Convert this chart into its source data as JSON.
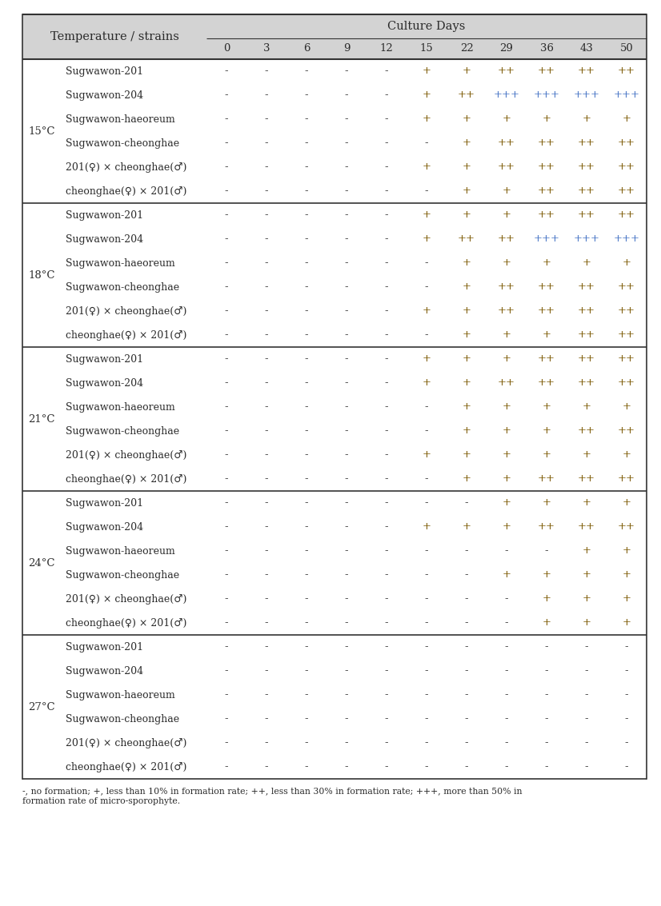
{
  "col_header_top": "Culture Days",
  "col_header_days": [
    "0",
    "3",
    "6",
    "9",
    "12",
    "15",
    "22",
    "29",
    "36",
    "43",
    "50"
  ],
  "row_header_left": "Temperature / strains",
  "temperature_groups": [
    {
      "temp": "15°C",
      "strains": [
        "Sugwawon-201",
        "Sugwawon-204",
        "Sugwawon-haeoreum",
        "Sugwawon-cheonghae",
        "201(♀) × cheonghae(♂)",
        "cheonghae(♀) × 201(♂)"
      ],
      "data": [
        [
          "-",
          "-",
          "-",
          "-",
          "-",
          "+",
          "+",
          "++",
          "++",
          "++",
          "++"
        ],
        [
          "-",
          "-",
          "-",
          "-",
          "-",
          "+",
          "++",
          "+++",
          "+++",
          "+++",
          "+++"
        ],
        [
          "-",
          "-",
          "-",
          "-",
          "-",
          "+",
          "+",
          "+",
          "+",
          "+",
          "+"
        ],
        [
          "-",
          "-",
          "-",
          "-",
          "-",
          "-",
          "+",
          "++",
          "++",
          "++",
          "++"
        ],
        [
          "-",
          "-",
          "-",
          "-",
          "-",
          "+",
          "+",
          "++",
          "++",
          "++",
          "++"
        ],
        [
          "-",
          "-",
          "-",
          "-",
          "-",
          "-",
          "+",
          "+",
          "++",
          "++",
          "++"
        ]
      ]
    },
    {
      "temp": "18°C",
      "strains": [
        "Sugwawon-201",
        "Sugwawon-204",
        "Sugwawon-haeoreum",
        "Sugwawon-cheonghae",
        "201(♀) × cheonghae(♂)",
        "cheonghae(♀) × 201(♂)"
      ],
      "data": [
        [
          "-",
          "-",
          "-",
          "-",
          "-",
          "+",
          "+",
          "+",
          "++",
          "++",
          "++"
        ],
        [
          "-",
          "-",
          "-",
          "-",
          "-",
          "+",
          "++",
          "++",
          "+++",
          "+++",
          "+++"
        ],
        [
          "-",
          "-",
          "-",
          "-",
          "-",
          "-",
          "+",
          "+",
          "+",
          "+",
          "+"
        ],
        [
          "-",
          "-",
          "-",
          "-",
          "-",
          "-",
          "+",
          "++",
          "++",
          "++",
          "++"
        ],
        [
          "-",
          "-",
          "-",
          "-",
          "-",
          "+",
          "+",
          "++",
          "++",
          "++",
          "++"
        ],
        [
          "-",
          "-",
          "-",
          "-",
          "-",
          "-",
          "+",
          "+",
          "+",
          "++",
          "++"
        ]
      ]
    },
    {
      "temp": "21°C",
      "strains": [
        "Sugwawon-201",
        "Sugwawon-204",
        "Sugwawon-haeoreum",
        "Sugwawon-cheonghae",
        "201(♀) × cheonghae(♂)",
        "cheonghae(♀) × 201(♂)"
      ],
      "data": [
        [
          "-",
          "-",
          "-",
          "-",
          "-",
          "+",
          "+",
          "+",
          "++",
          "++",
          "++"
        ],
        [
          "-",
          "-",
          "-",
          "-",
          "-",
          "+",
          "+",
          "++",
          "++",
          "++",
          "++"
        ],
        [
          "-",
          "-",
          "-",
          "-",
          "-",
          "-",
          "+",
          "+",
          "+",
          "+",
          "+"
        ],
        [
          "-",
          "-",
          "-",
          "-",
          "-",
          "-",
          "+",
          "+",
          "+",
          "++",
          "++"
        ],
        [
          "-",
          "-",
          "-",
          "-",
          "-",
          "+",
          "+",
          "+",
          "+",
          "+",
          "+"
        ],
        [
          "-",
          "-",
          "-",
          "-",
          "-",
          "-",
          "+",
          "+",
          "++",
          "++",
          "++"
        ]
      ]
    },
    {
      "temp": "24°C",
      "strains": [
        "Sugwawon-201",
        "Sugwawon-204",
        "Sugwawon-haeoreum",
        "Sugwawon-cheonghae",
        "201(♀) × cheonghae(♂)",
        "cheonghae(♀) × 201(♂)"
      ],
      "data": [
        [
          "-",
          "-",
          "-",
          "-",
          "-",
          "-",
          "-",
          "+",
          "+",
          "+",
          "+"
        ],
        [
          "-",
          "-",
          "-",
          "-",
          "-",
          "+",
          "+",
          "+",
          "++",
          "++",
          "++"
        ],
        [
          "-",
          "-",
          "-",
          "-",
          "-",
          "-",
          "-",
          "-",
          "-",
          "+",
          "+"
        ],
        [
          "-",
          "-",
          "-",
          "-",
          "-",
          "-",
          "-",
          "+",
          "+",
          "+",
          "+"
        ],
        [
          "-",
          "-",
          "-",
          "-",
          "-",
          "-",
          "-",
          "-",
          "+",
          "+",
          "+"
        ],
        [
          "-",
          "-",
          "-",
          "-",
          "-",
          "-",
          "-",
          "-",
          "+",
          "+",
          "+"
        ]
      ]
    },
    {
      "temp": "27°C",
      "strains": [
        "Sugwawon-201",
        "Sugwawon-204",
        "Sugwawon-haeoreum",
        "Sugwawon-cheonghae",
        "201(♀) × cheonghae(♂)",
        "cheonghae(♀) × 201(♂)"
      ],
      "data": [
        [
          "-",
          "-",
          "-",
          "-",
          "-",
          "-",
          "-",
          "-",
          "-",
          "-",
          "-"
        ],
        [
          "-",
          "-",
          "-",
          "-",
          "-",
          "-",
          "-",
          "-",
          "-",
          "-",
          "-"
        ],
        [
          "-",
          "-",
          "-",
          "-",
          "-",
          "-",
          "-",
          "-",
          "-",
          "-",
          "-"
        ],
        [
          "-",
          "-",
          "-",
          "-",
          "-",
          "-",
          "-",
          "-",
          "-",
          "-",
          "-"
        ],
        [
          "-",
          "-",
          "-",
          "-",
          "-",
          "-",
          "-",
          "-",
          "-",
          "-",
          "-"
        ],
        [
          "-",
          "-",
          "-",
          "-",
          "-",
          "-",
          "-",
          "-",
          "-",
          "-",
          "-"
        ]
      ]
    }
  ],
  "footnote_line1": "-, no formation; +, less than 10% in formation rate; ++, less than 30% in formation rate; +++, more than 50% in",
  "footnote_line2": "formation rate of micro-sporophyte.",
  "header_bg": "#d3d3d3",
  "text_color": "#2b2b2b",
  "minus_color": "#2b2b2b",
  "plus_color": "#7b5800",
  "plus_blue_color": "#4472c4",
  "line_color": "#333333",
  "fs_header": 10.5,
  "fs_strain": 9.0,
  "fs_temp": 9.5,
  "fs_data": 9.5,
  "fs_days": 9.5,
  "fs_footnote": 7.8
}
